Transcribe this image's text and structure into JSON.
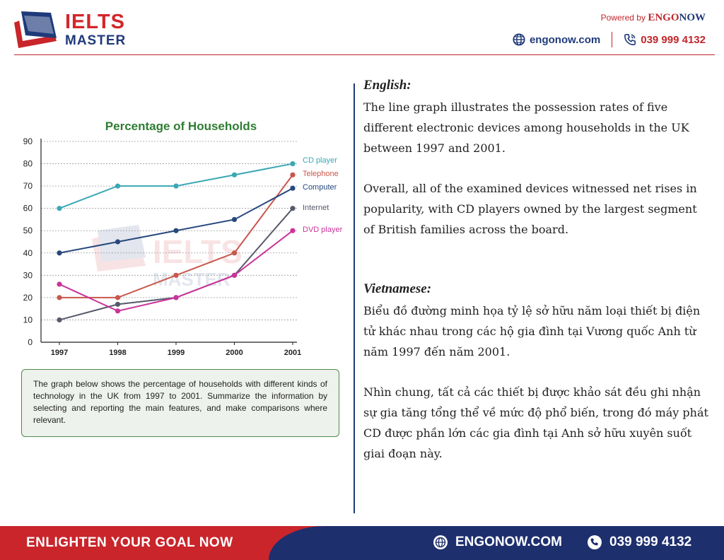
{
  "header": {
    "logo_top": "IELTS",
    "logo_bottom": "MASTER",
    "powered_prefix": "Powered by ",
    "powered_brand_a": "ENGO",
    "powered_brand_b": "NOW",
    "website": "engonow.com",
    "phone": "039 999 4132",
    "globe_icon": "globe-icon",
    "phone_icon": "phone-icon"
  },
  "chart_data": {
    "type": "line",
    "title": "Percentage of Households",
    "x": [
      "1997",
      "1998",
      "1999",
      "2000",
      "2001"
    ],
    "ylim": [
      0,
      90
    ],
    "yticks": [
      0,
      10,
      20,
      30,
      40,
      50,
      60,
      70,
      80,
      90
    ],
    "grid": true,
    "legend_placement": "right (labels at line ends)",
    "series": [
      {
        "name": "CD player",
        "values": [
          60,
          70,
          70,
          75,
          80
        ],
        "color": "#3aa7b6"
      },
      {
        "name": "Telephone",
        "values": [
          20,
          20,
          30,
          40,
          75
        ],
        "color": "#c8574c"
      },
      {
        "name": "Computer",
        "values": [
          40,
          45,
          50,
          55,
          69
        ],
        "color": "#27487d"
      },
      {
        "name": "Internet",
        "values": [
          10,
          17,
          20,
          30,
          60
        ],
        "color": "#565a6a"
      },
      {
        "name": "DVD player",
        "values": [
          26,
          14,
          20,
          30,
          50
        ],
        "color": "#c9349a"
      }
    ]
  },
  "task": {
    "text": "The graph below shows the percentage of households with different kinds of technology in the UK from 1997 to 2001. Summarize the information by selecting and reporting the main features, and make comparisons where relevant."
  },
  "english": {
    "title": "English:",
    "p1": "The line graph illustrates the possession rates of five different electronic devices among households in the UK between 1997 and 2001.",
    "p2": "Overall, all of the examined devices witnessed net rises in popularity, with CD players owned by the largest segment of British families across the board."
  },
  "vietnamese": {
    "title": "Vietnamese:",
    "p1": "Biểu đồ đường minh họa tỷ lệ sở hữu năm loại thiết bị điện tử khác nhau trong các hộ gia đình tại Vương quốc Anh từ năm 1997 đến năm 2001.",
    "p2": "Nhìn chung, tất cả các thiết bị được khảo sát đều ghi nhận sự gia tăng tổng thể về mức độ phổ biến, trong đó máy phát CD được phần lớn các gia đình tại Anh sở hữu xuyên suốt giai đoạn này."
  },
  "footer": {
    "slogan": "ENLIGHTEN YOUR GOAL NOW",
    "website": "ENGONOW.COM",
    "phone": "039 999 4132"
  },
  "colors": {
    "brand_red": "#c9252b",
    "brand_navy": "#1e2f6e",
    "title_green": "#2e7d32"
  }
}
